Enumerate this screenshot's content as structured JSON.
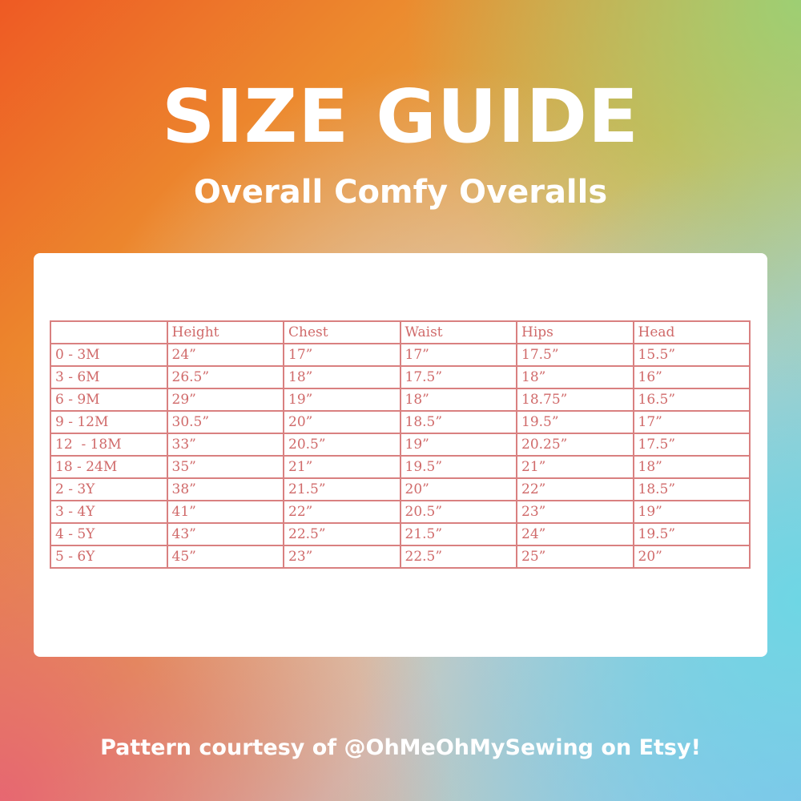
{
  "header": {
    "title": "SIZE GUIDE",
    "subtitle": "Overall Comfy Overalls"
  },
  "table": {
    "columns": [
      "",
      "Height",
      "Chest",
      "Waist",
      "Hips",
      "Head"
    ],
    "rows": [
      [
        "0 - 3M",
        "24”",
        "17”",
        "17”",
        "17.5”",
        "15.5”"
      ],
      [
        "3 - 6M",
        "26.5”",
        "18”",
        "17.5”",
        "18”",
        "16”"
      ],
      [
        "6 - 9M",
        "29”",
        "19”",
        "18”",
        "18.75”",
        "16.5”"
      ],
      [
        "9 - 12M",
        "30.5”",
        "20”",
        "18.5”",
        "19.5”",
        "17”"
      ],
      [
        "12  - 18M",
        "33”",
        "20.5”",
        "19”",
        "20.25”",
        "17.5”"
      ],
      [
        "18 - 24M",
        "35”",
        "21”",
        "19.5”",
        "21”",
        "18”"
      ],
      [
        "2 - 3Y",
        "38”",
        "21.5”",
        "20”",
        "22”",
        "18.5”"
      ],
      [
        "3 - 4Y",
        "41”",
        "22”",
        "20.5”",
        "23”",
        "19”"
      ],
      [
        "4 - 5Y",
        "43”",
        "22.5”",
        "21.5”",
        "24”",
        "19.5”"
      ],
      [
        "5 - 6Y",
        "45”",
        "23”",
        "22.5”",
        "25”",
        "20”"
      ]
    ]
  },
  "footer": {
    "credit": "Pattern courtesy of @OhMeOhMySewing on Etsy!"
  }
}
